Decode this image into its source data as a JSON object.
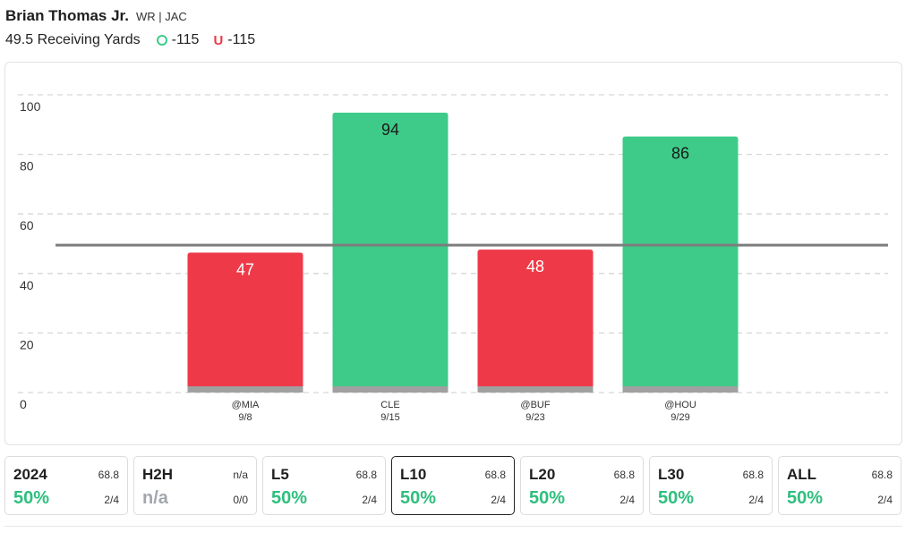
{
  "player": {
    "name": "Brian Thomas Jr.",
    "meta": "WR | JAC"
  },
  "prop": {
    "label": "49.5 Receiving Yards",
    "over_odds": "-115",
    "under_symbol": "U",
    "under_odds": "-115"
  },
  "colors": {
    "over": "#3ecb8a",
    "under": "#ee3a48",
    "base": "#a0a0a0",
    "line": "#7d7d7d",
    "grid": "#d6d6d6"
  },
  "chart_data": {
    "type": "bar",
    "title": "",
    "xlabel": "",
    "ylabel": "",
    "ylim": [
      0,
      100
    ],
    "yticks": [
      0,
      20,
      40,
      60,
      80,
      100
    ],
    "grid": true,
    "threshold": 49.5,
    "categories": [
      {
        "opponent": "@MIA",
        "date": "9/8"
      },
      {
        "opponent": "CLE",
        "date": "9/15"
      },
      {
        "opponent": "@BUF",
        "date": "9/23"
      },
      {
        "opponent": "@HOU",
        "date": "9/29"
      }
    ],
    "values": [
      47,
      94,
      48,
      86
    ]
  },
  "stats": [
    {
      "period": "2024",
      "avg": "68.8",
      "pct": "50%",
      "record": "2/4",
      "selected": false,
      "na": false
    },
    {
      "period": "H2H",
      "avg": "n/a",
      "pct": "n/a",
      "record": "0/0",
      "selected": false,
      "na": true
    },
    {
      "period": "L5",
      "avg": "68.8",
      "pct": "50%",
      "record": "2/4",
      "selected": false,
      "na": false
    },
    {
      "period": "L10",
      "avg": "68.8",
      "pct": "50%",
      "record": "2/4",
      "selected": true,
      "na": false
    },
    {
      "period": "L20",
      "avg": "68.8",
      "pct": "50%",
      "record": "2/4",
      "selected": false,
      "na": false
    },
    {
      "period": "L30",
      "avg": "68.8",
      "pct": "50%",
      "record": "2/4",
      "selected": false,
      "na": false
    },
    {
      "period": "ALL",
      "avg": "68.8",
      "pct": "50%",
      "record": "2/4",
      "selected": false,
      "na": false
    }
  ]
}
